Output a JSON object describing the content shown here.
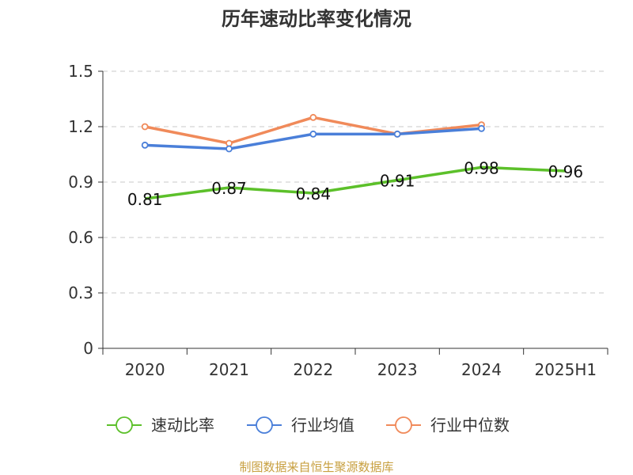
{
  "chart_data": {
    "type": "line",
    "title": "历年速动比率变化情况",
    "categories": [
      "2020",
      "2021",
      "2022",
      "2023",
      "2024",
      "2025H1"
    ],
    "yticks": [
      "0",
      "0.3",
      "0.6",
      "0.9",
      "1.2",
      "1.5"
    ],
    "ylim": [
      0,
      1.5
    ],
    "grid": true,
    "legend_position": "bottom",
    "series": [
      {
        "name": "速动比率",
        "color": "#5cc02a",
        "values": [
          0.81,
          0.87,
          0.84,
          0.91,
          0.98,
          0.96
        ],
        "labels": [
          "0.81",
          "0.87",
          "0.84",
          "0.91",
          "0.98",
          "0.96"
        ]
      },
      {
        "name": "行业均值",
        "color": "#4a7fd9",
        "values": [
          1.1,
          1.08,
          1.16,
          1.16,
          1.19,
          null
        ]
      },
      {
        "name": "行业中位数",
        "color": "#f08a5a",
        "values": [
          1.2,
          1.11,
          1.25,
          1.16,
          1.21,
          null
        ]
      }
    ],
    "source": "制图数据来自恒生聚源数据库"
  }
}
